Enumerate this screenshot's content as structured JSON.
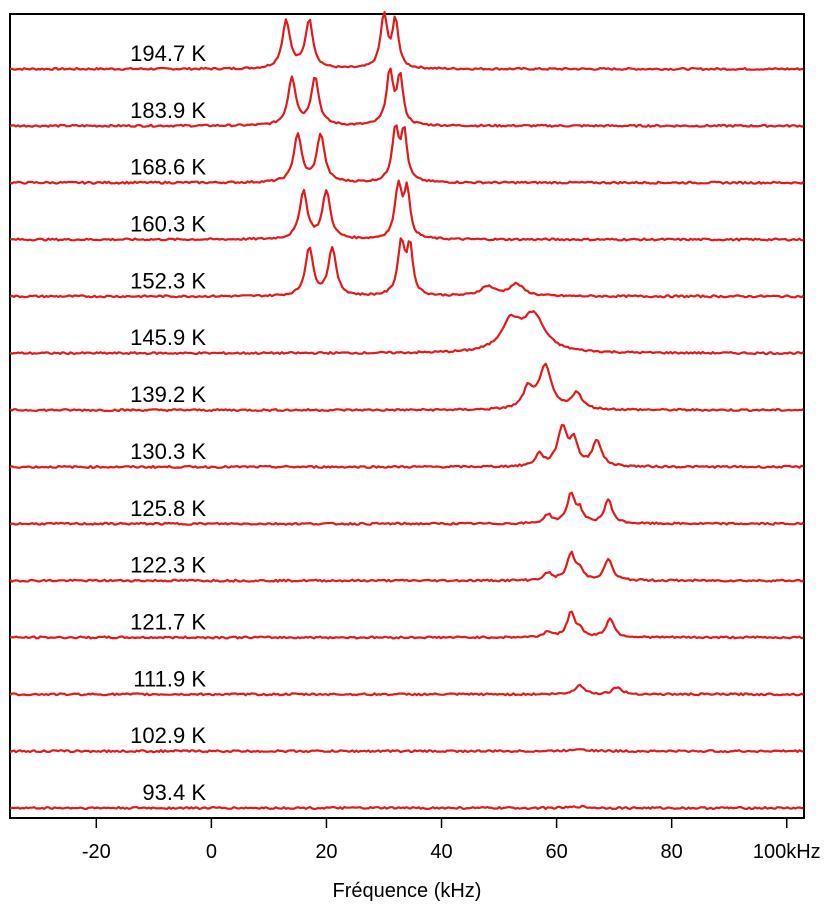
{
  "chart_data": {
    "type": "line",
    "xlabel": "Fréquence (kHz)",
    "xlim": [
      -35,
      103
    ],
    "x_ticks": [
      {
        "value": -20,
        "label": "-20"
      },
      {
        "value": 0,
        "label": "0"
      },
      {
        "value": 20,
        "label": "20"
      },
      {
        "value": 40,
        "label": "40"
      },
      {
        "value": 60,
        "label": "60"
      },
      {
        "value": 80,
        "label": "80"
      },
      {
        "value": 100,
        "label": "100kHz"
      }
    ],
    "layout": "stacked",
    "grid": false,
    "line_color": "#e31a1c",
    "series": [
      {
        "name": "194.7 K",
        "peaks": [
          [
            13,
            1.0,
            0.8
          ],
          [
            17,
            1.0,
            0.8
          ],
          [
            30,
            1.1,
            0.7
          ],
          [
            32,
            1.0,
            0.6
          ]
        ]
      },
      {
        "name": "183.9 K",
        "peaks": [
          [
            14,
            1.0,
            0.8
          ],
          [
            18,
            1.0,
            0.8
          ],
          [
            31,
            1.1,
            0.7
          ],
          [
            32.8,
            1.0,
            0.6
          ]
        ]
      },
      {
        "name": "168.6 K",
        "peaks": [
          [
            15,
            1.0,
            0.8
          ],
          [
            19,
            1.0,
            0.8
          ],
          [
            32,
            1.1,
            0.7
          ],
          [
            33.5,
            1.0,
            0.6
          ]
        ]
      },
      {
        "name": "160.3 K",
        "peaks": [
          [
            16,
            1.0,
            0.8
          ],
          [
            20,
            1.0,
            0.8
          ],
          [
            32.5,
            1.1,
            0.7
          ],
          [
            34,
            1.0,
            0.6
          ]
        ]
      },
      {
        "name": "152.3 K",
        "peaks": [
          [
            17,
            1.0,
            0.8
          ],
          [
            21,
            1.0,
            0.8
          ],
          [
            33,
            1.1,
            0.7
          ],
          [
            34.5,
            1.0,
            0.6
          ],
          [
            48,
            0.2,
            1.5
          ],
          [
            53,
            0.25,
            1.5
          ]
        ]
      },
      {
        "name": "145.9 K",
        "peaks": [
          [
            52,
            0.6,
            2.0
          ],
          [
            56,
            0.75,
            2.3
          ]
        ]
      },
      {
        "name": "139.2 K",
        "peaks": [
          [
            55,
            0.4,
            1.0
          ],
          [
            58,
            0.9,
            1.3
          ],
          [
            63.5,
            0.35,
            1.0
          ]
        ]
      },
      {
        "name": "130.3 K",
        "peaks": [
          [
            57,
            0.25,
            0.8
          ],
          [
            61,
            0.8,
            1.0
          ],
          [
            63,
            0.5,
            0.8
          ],
          [
            67,
            0.55,
            0.9
          ]
        ]
      },
      {
        "name": "125.8 K",
        "peaks": [
          [
            58.5,
            0.18,
            0.8
          ],
          [
            62.5,
            0.6,
            0.8
          ],
          [
            64,
            0.25,
            0.7
          ],
          [
            69,
            0.5,
            0.8
          ]
        ]
      },
      {
        "name": "122.3 K",
        "peaks": [
          [
            58.5,
            0.15,
            0.8
          ],
          [
            62.5,
            0.55,
            0.8
          ],
          [
            64,
            0.2,
            0.7
          ],
          [
            69,
            0.45,
            0.8
          ]
        ]
      },
      {
        "name": "121.7 K",
        "peaks": [
          [
            58.5,
            0.12,
            0.8
          ],
          [
            62.5,
            0.5,
            0.8
          ],
          [
            64,
            0.15,
            0.7
          ],
          [
            69.3,
            0.4,
            0.8
          ]
        ]
      },
      {
        "name": "111.9 K",
        "peaks": [
          [
            64,
            0.2,
            0.9
          ],
          [
            70.5,
            0.15,
            0.9
          ]
        ]
      },
      {
        "name": "102.9 K",
        "peaks": [
          [
            64,
            0.05,
            1.5
          ]
        ]
      },
      {
        "name": "93.4 K",
        "peaks": [
          [
            64,
            0.03,
            1.5
          ]
        ]
      }
    ]
  }
}
